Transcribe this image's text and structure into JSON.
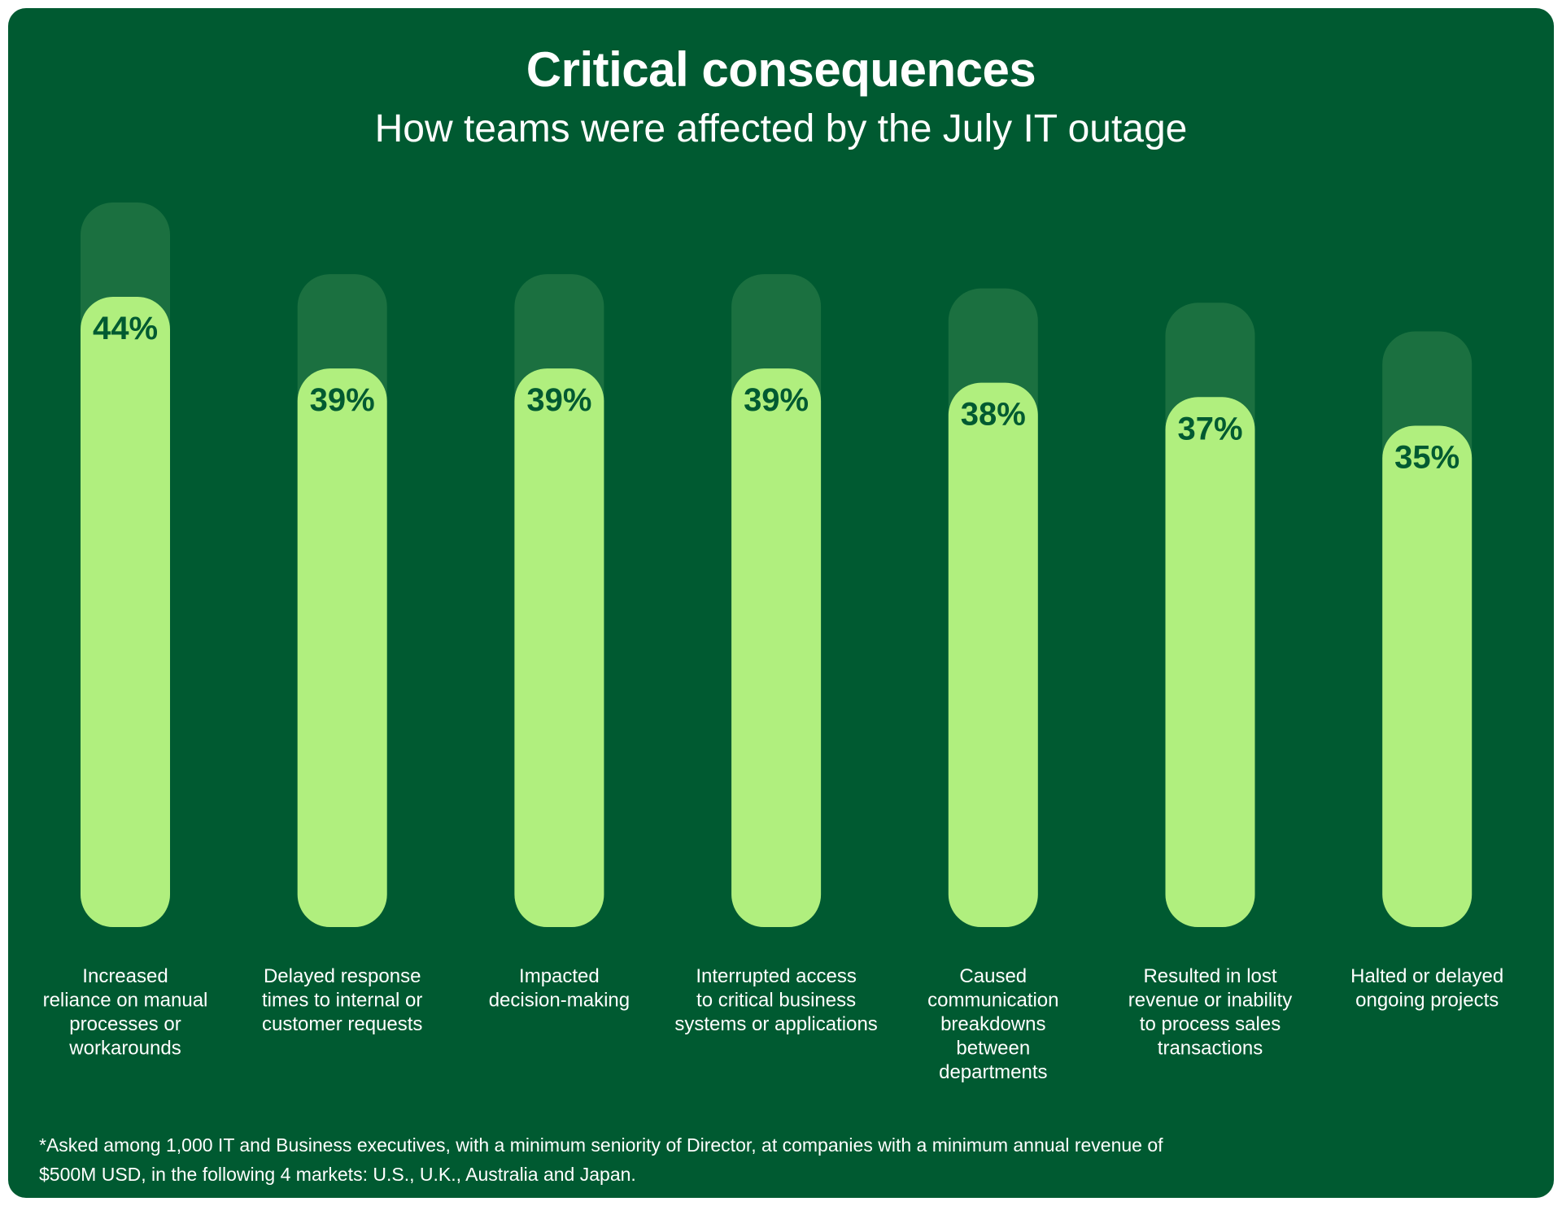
{
  "title": "Critical consequences",
  "subtitle": "How teams were affected by the July IT outage",
  "footnote": {
    "line1": "*Asked among 1,000 IT and Business executives, with a minimum seniority of Director, at companies with a minimum annual revenue of",
    "line2": "$500M USD, in the following 4 markets: U.S., U.K., Australia and Japan."
  },
  "colors": {
    "background": "#005a31",
    "bar_fill": "#b0ef7e",
    "bar_track": "#1b7040",
    "value_text": "#005a31",
    "text": "#ffffff"
  },
  "chart_data": {
    "type": "bar",
    "title": "Critical consequences",
    "subtitle": "How teams were affected by the July IT outage",
    "xlabel": "",
    "ylabel": "",
    "ylim": [
      0,
      44
    ],
    "grid": false,
    "categories": [
      [
        "Increased",
        "reliance on manual",
        "processes or",
        "workarounds"
      ],
      [
        "Delayed response",
        "times to internal or",
        "customer requests"
      ],
      [
        "Impacted",
        "decision-making"
      ],
      [
        "Interrupted access",
        "to critical business",
        "systems or applications"
      ],
      [
        "Caused",
        "communication",
        "breakdowns",
        "between",
        "departments"
      ],
      [
        "Resulted in lost",
        "revenue or inability",
        "to process sales",
        "transactions"
      ],
      [
        "Halted or delayed",
        "ongoing projects"
      ]
    ],
    "values": [
      44,
      39,
      39,
      39,
      38,
      37,
      35
    ],
    "value_labels": [
      "44%",
      "39%",
      "39%",
      "39%",
      "38%",
      "37%",
      "35%"
    ]
  }
}
